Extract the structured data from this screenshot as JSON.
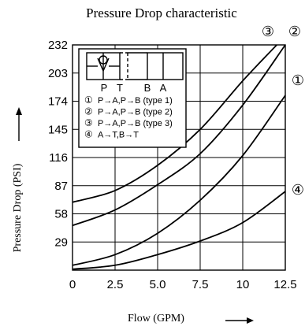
{
  "chart_data": {
    "type": "line",
    "title": "Pressure Drop characteristic",
    "xlabel": "Flow    (GPM)",
    "ylabel": "Pressure Drop  (PSI)",
    "xlim": [
      0,
      12.5
    ],
    "ylim": [
      0,
      232
    ],
    "x_ticks": [
      "0",
      "2.5",
      "5.0",
      "7.5",
      "10",
      "12.5"
    ],
    "y_ticks": [
      "29",
      "58",
      "87",
      "116",
      "145",
      "174",
      "203",
      "232"
    ],
    "grid": true,
    "curve_labels": [
      "①",
      "②",
      "③",
      "④"
    ],
    "series": [
      {
        "name": "①",
        "x": [
          0,
          2.5,
          5,
          7.5,
          10,
          12.5
        ],
        "y": [
          5,
          16,
          38,
          72,
          118,
          180
        ]
      },
      {
        "name": "②",
        "x": [
          0,
          2.5,
          5,
          7.5,
          10,
          12.5
        ],
        "y": [
          46,
          62,
          88,
          120,
          170,
          232
        ]
      },
      {
        "name": "③",
        "x": [
          0,
          2.5,
          5,
          7.5,
          10,
          12.0
        ],
        "y": [
          70,
          82,
          108,
          145,
          195,
          232
        ]
      },
      {
        "name": "④",
        "x": [
          0,
          2.5,
          5,
          7.5,
          10,
          12.5
        ],
        "y": [
          1,
          5,
          16,
          30,
          49,
          81
        ]
      }
    ],
    "legend": {
      "placement": "top-left",
      "ports": [
        "P",
        "T",
        "B",
        "A"
      ],
      "entries": [
        {
          "marker": "①",
          "text": "P→A,P→B  (type  1)"
        },
        {
          "marker": "②",
          "text": "P→A,P→B  (type  2)"
        },
        {
          "marker": "③",
          "text": "P→A,P→B  (type  3)"
        },
        {
          "marker": "④",
          "text": "A→T,B→T"
        }
      ]
    }
  }
}
